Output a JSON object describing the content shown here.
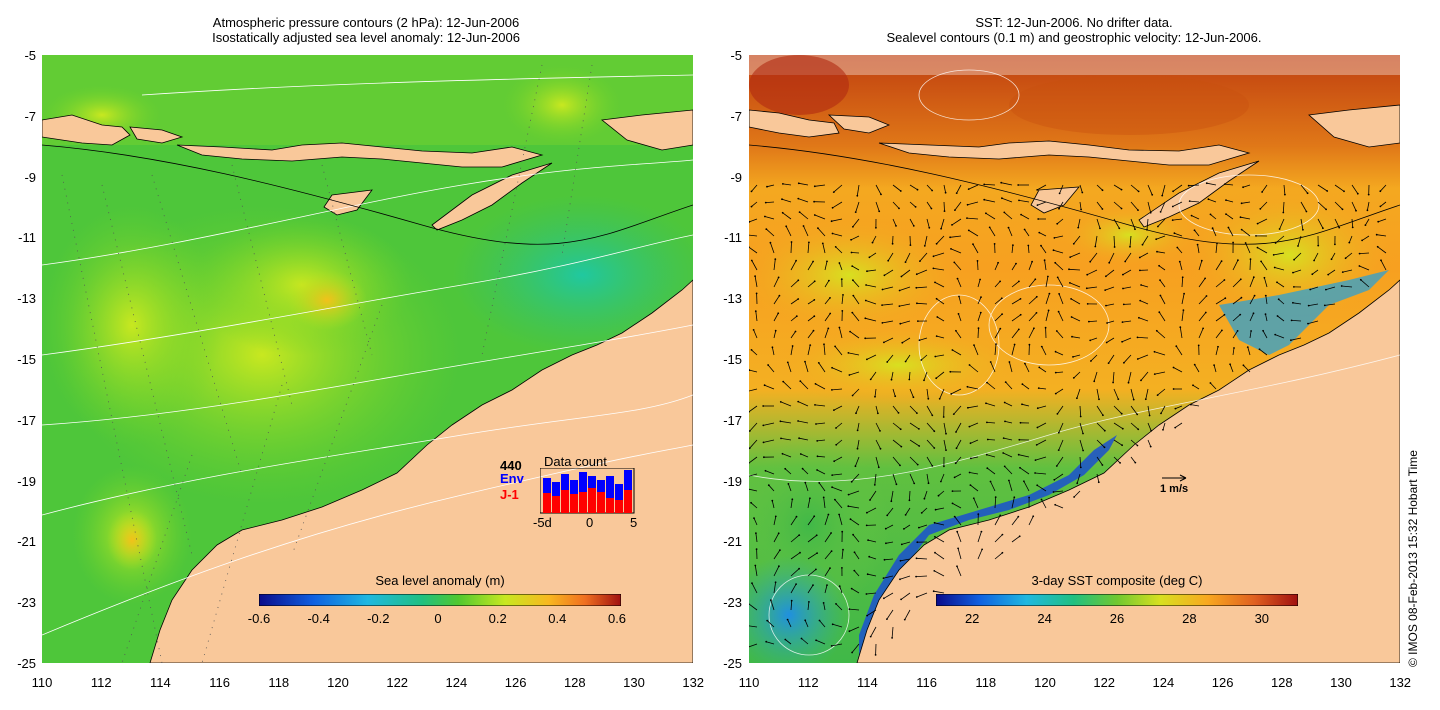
{
  "left_panel": {
    "title_line1": "Atmospheric pressure contours (2 hPa): 12-Jun-2006",
    "title_line2": "Isostatically adjusted sea level anomaly: 12-Jun-2006",
    "colorbar_label": "Sea level anomaly (m)",
    "colorbar_ticks": [
      "-0.6",
      "-0.4",
      "-0.2",
      "0",
      "0.2",
      "0.4",
      "0.6"
    ],
    "data_count": {
      "title": "Data count",
      "max_label": "440",
      "env_label": "Env",
      "j1_label": "J-1",
      "x_labels": [
        "-5d",
        "0",
        "5"
      ],
      "env_color": "#0000ff",
      "j1_color": "#ff0000"
    }
  },
  "right_panel": {
    "title_line1": "SST: 12-Jun-2006. No drifter data.",
    "title_line2": "Sealevel contours (0.1 m) and geostrophic velocity: 12-Jun-2006.",
    "colorbar_label": "3-day SST composite (deg C)",
    "colorbar_ticks": [
      "22",
      "24",
      "26",
      "28",
      "30"
    ],
    "scale_arrow_label": "1 m/s"
  },
  "axes": {
    "lat_ticks": [
      "-5",
      "-7",
      "-9",
      "-11",
      "-13",
      "-15",
      "-17",
      "-19",
      "-21",
      "-23",
      "-25"
    ],
    "lon_ticks": [
      "110",
      "112",
      "114",
      "116",
      "118",
      "120",
      "122",
      "124",
      "126",
      "128",
      "130",
      "132"
    ]
  },
  "credit": "© IMOS 08-Feb-2013 15:32 Hobart Time",
  "colors": {
    "land": "#f9c89a",
    "sla_ocean": "#3ec23a",
    "sst_ocean": "#f7a020"
  }
}
